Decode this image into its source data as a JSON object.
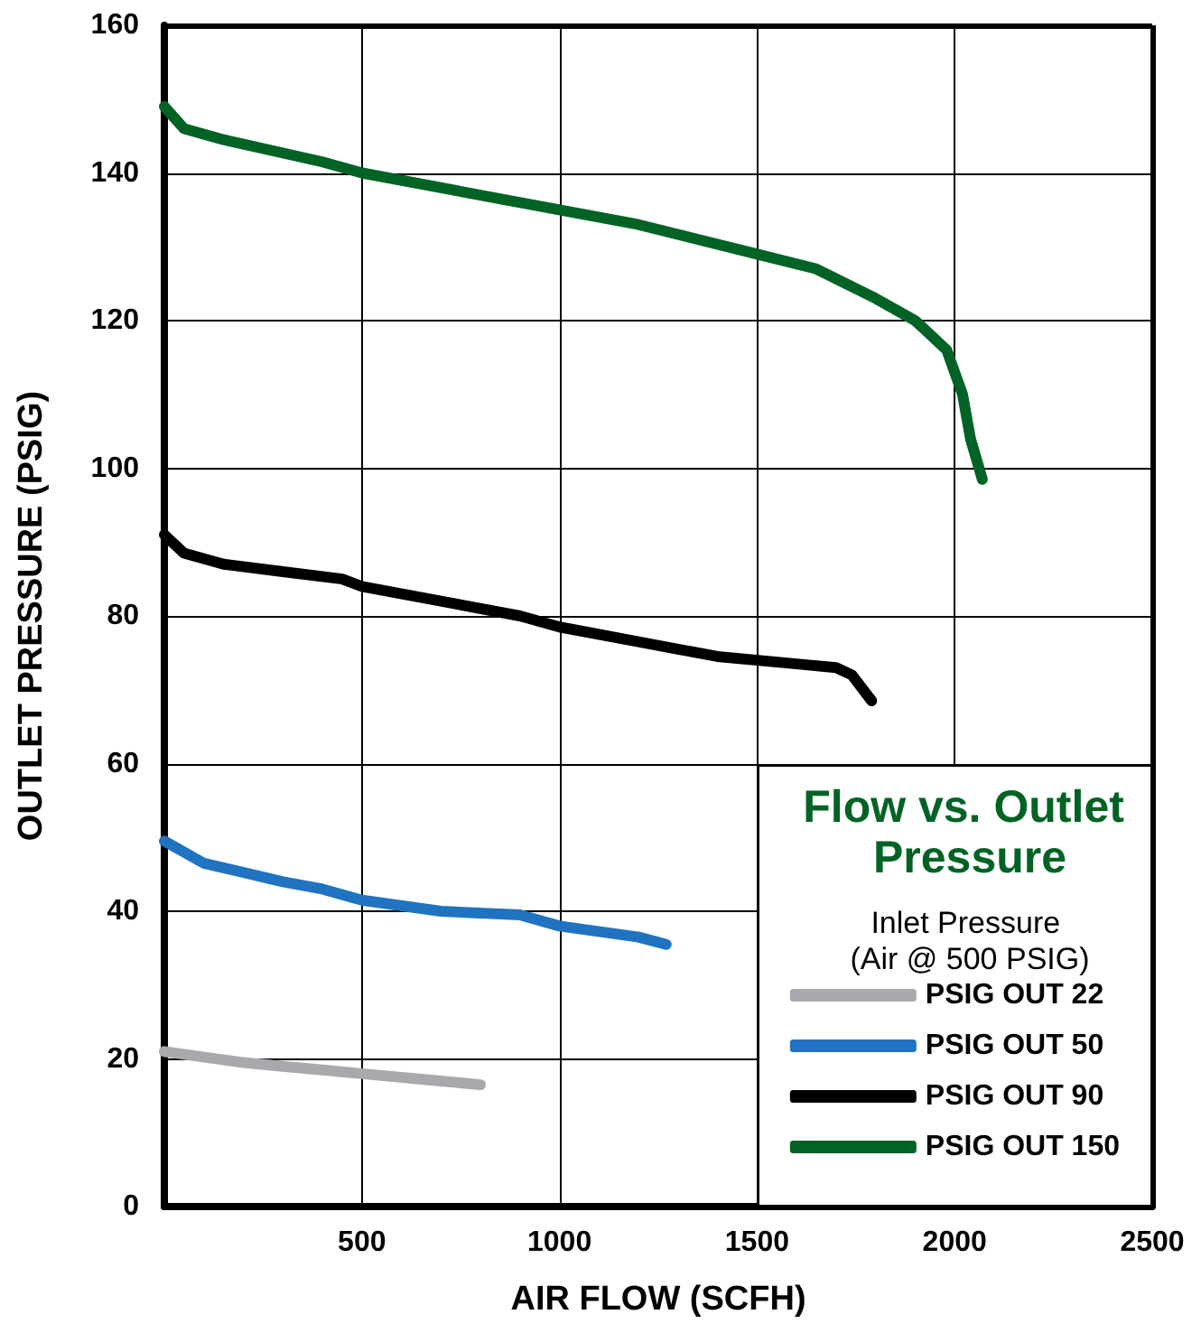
{
  "chart_data": {
    "type": "line",
    "title": "Flow vs. Outlet Pressure",
    "subtitle": "Inlet Pressure (Air @ 500 PSIG)",
    "xlabel": "AIR FLOW (SCFH)",
    "ylabel": "OUTLET PRESSURE (PSIG)",
    "xlim": [
      0,
      2500
    ],
    "xticks": [
      {
        "value": 0,
        "label": null
      },
      500,
      1000,
      1500,
      2000,
      2500
    ],
    "ylim": [
      0,
      160
    ],
    "yticks": [
      0,
      20,
      40,
      60,
      80,
      100,
      120,
      140,
      160
    ],
    "grid": true,
    "legend": "bottom right",
    "marker": "none",
    "line_style": "solid",
    "series": [
      {
        "name": "PSIG OUT 22",
        "color": "#a7a9ac",
        "x": [
          0,
          200,
          300,
          400,
          500,
          700,
          800
        ],
        "values": [
          21,
          19.5,
          19,
          18.5,
          18,
          17,
          16.5
        ]
      },
      {
        "name": "PSIG OUT 50",
        "color": "#1f73c0",
        "x": [
          0,
          100,
          300,
          400,
          500,
          700,
          900,
          1000,
          1200,
          1270
        ],
        "values": [
          49.5,
          46.5,
          44,
          43,
          41.5,
          40,
          39.5,
          38,
          36.5,
          35.5
        ]
      },
      {
        "name": "PSIG OUT 90",
        "color": "#000000",
        "x": [
          0,
          50,
          150,
          300,
          450,
          500,
          700,
          900,
          1000,
          1200,
          1300,
          1400,
          1600,
          1700,
          1740,
          1790
        ],
        "values": [
          91,
          88.5,
          87,
          86,
          85,
          84,
          82,
          80,
          78.5,
          76.5,
          75.5,
          74.5,
          73.5,
          73,
          72,
          68.5
        ]
      },
      {
        "name": "PSIG OUT 150",
        "color": "#006325",
        "x": [
          0,
          50,
          150,
          400,
          500,
          800,
          1000,
          1200,
          1500,
          1650,
          1800,
          1900,
          1980,
          2020,
          2040,
          2070
        ],
        "values": [
          149,
          146,
          144.5,
          141.5,
          140,
          137,
          135,
          133,
          129,
          127,
          123,
          120,
          116,
          110,
          104,
          98.5
        ]
      }
    ]
  }
}
